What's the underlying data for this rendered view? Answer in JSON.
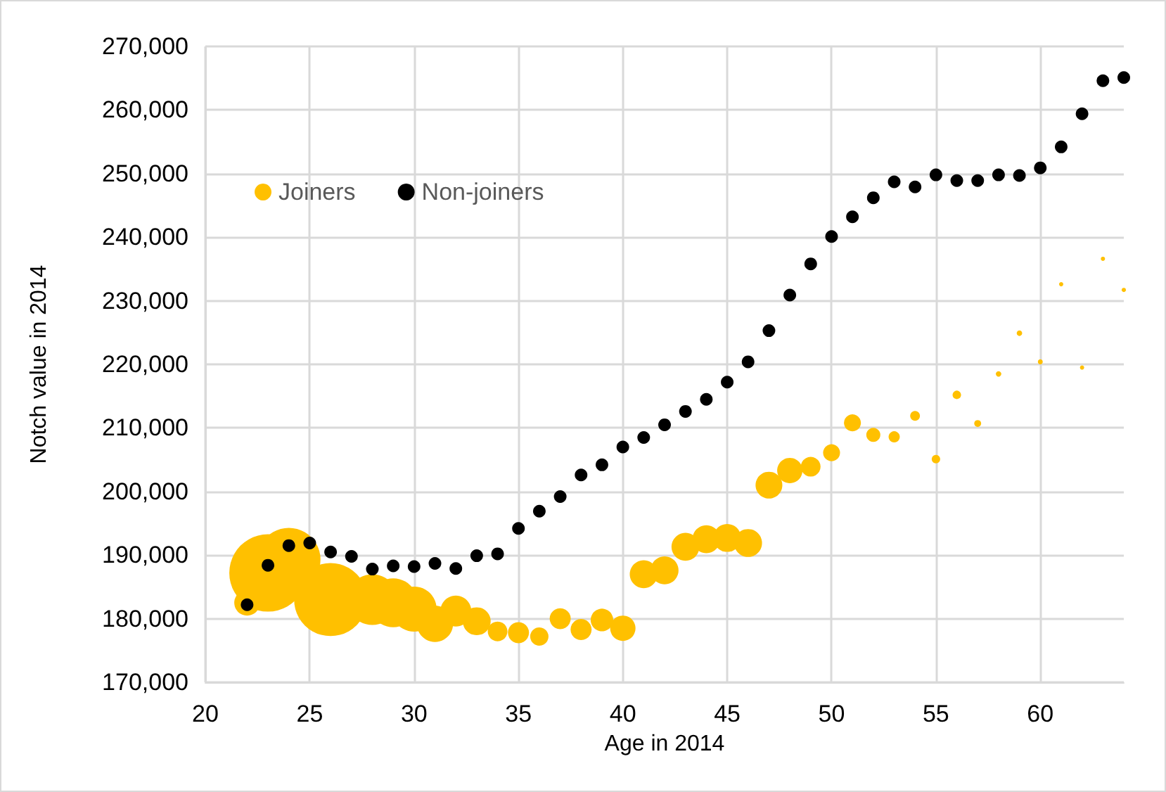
{
  "chart_data": {
    "type": "bubble",
    "xlabel": "Age in 2014",
    "ylabel": "Notch value in 2014",
    "xlim": [
      20,
      64
    ],
    "xticks": [
      20,
      25,
      30,
      35,
      40,
      45,
      50,
      55,
      60
    ],
    "ylim": [
      170000,
      270000
    ],
    "yticks": [
      {
        "value": 170000,
        "label": "170,000"
      },
      {
        "value": 180000,
        "label": "180,000"
      },
      {
        "value": 190000,
        "label": "190,000"
      },
      {
        "value": 200000,
        "label": "200,000"
      },
      {
        "value": 210000,
        "label": "210,000"
      },
      {
        "value": 220000,
        "label": "220,000"
      },
      {
        "value": 230000,
        "label": "230,000"
      },
      {
        "value": 240000,
        "label": "240,000"
      },
      {
        "value": 250000,
        "label": "250,000"
      },
      {
        "value": 260000,
        "label": "260,000"
      },
      {
        "value": 270000,
        "label": "270,000"
      }
    ],
    "grid": true,
    "legend": "top left",
    "marker": "circle",
    "series": [
      {
        "name": "Joiners",
        "color": "#ffc000",
        "x": [
          22,
          23,
          24,
          25,
          26,
          27,
          28,
          29,
          30,
          31,
          32,
          33,
          34,
          35,
          36,
          37,
          38,
          39,
          40,
          41,
          42,
          43,
          44,
          45,
          46,
          47,
          48,
          49,
          50,
          51,
          52,
          53,
          54,
          55,
          56,
          57,
          58,
          59,
          60,
          61,
          62,
          63,
          64
        ],
        "values": [
          182500,
          187200,
          189300,
          null,
          183000,
          null,
          183000,
          182500,
          181500,
          179200,
          181200,
          179600,
          178000,
          177800,
          177200,
          180000,
          178300,
          179800,
          178500,
          187000,
          187600,
          191300,
          192500,
          192700,
          191900,
          201000,
          203300,
          203900,
          206100,
          210800,
          208900,
          208600,
          211900,
          205100,
          215200,
          210700,
          218500,
          224900,
          220400,
          232600,
          219500,
          236600,
          231700
        ],
        "sizes": [
          0.11,
          1,
          0.67,
          null,
          0.89,
          null,
          0.43,
          0.4,
          0.34,
          0.22,
          0.16,
          0.13,
          0.065,
          0.074,
          0.056,
          0.074,
          0.074,
          0.085,
          0.107,
          0.13,
          0.13,
          0.13,
          0.13,
          0.13,
          0.13,
          0.12,
          0.107,
          0.065,
          0.048,
          0.048,
          0.033,
          0.021,
          0.016,
          0.012,
          0.012,
          0.008,
          0.005,
          0.005,
          0.004,
          0.003,
          0.003,
          0.003,
          0.003
        ]
      },
      {
        "name": "Non-joiners",
        "color": "#000000",
        "type": "scatter",
        "x": [
          22,
          23,
          24,
          25,
          26,
          27,
          28,
          29,
          30,
          31,
          32,
          33,
          34,
          35,
          36,
          37,
          38,
          39,
          40,
          41,
          42,
          43,
          44,
          45,
          46,
          47,
          48,
          49,
          50,
          51,
          52,
          53,
          54,
          55,
          56,
          57,
          58,
          59,
          60,
          61,
          62,
          63,
          64
        ],
        "values": [
          182200,
          188400,
          191500,
          191900,
          190500,
          189800,
          187800,
          188300,
          188200,
          188700,
          187900,
          189900,
          190200,
          194200,
          196900,
          199200,
          202600,
          204200,
          207000,
          208500,
          210500,
          212600,
          214500,
          217200,
          220400,
          225300,
          230900,
          235800,
          240100,
          243200,
          246200,
          248700,
          247900,
          249800,
          248900,
          248900,
          249800,
          249700,
          250900,
          254200,
          259400,
          264600,
          265100
        ]
      }
    ]
  }
}
